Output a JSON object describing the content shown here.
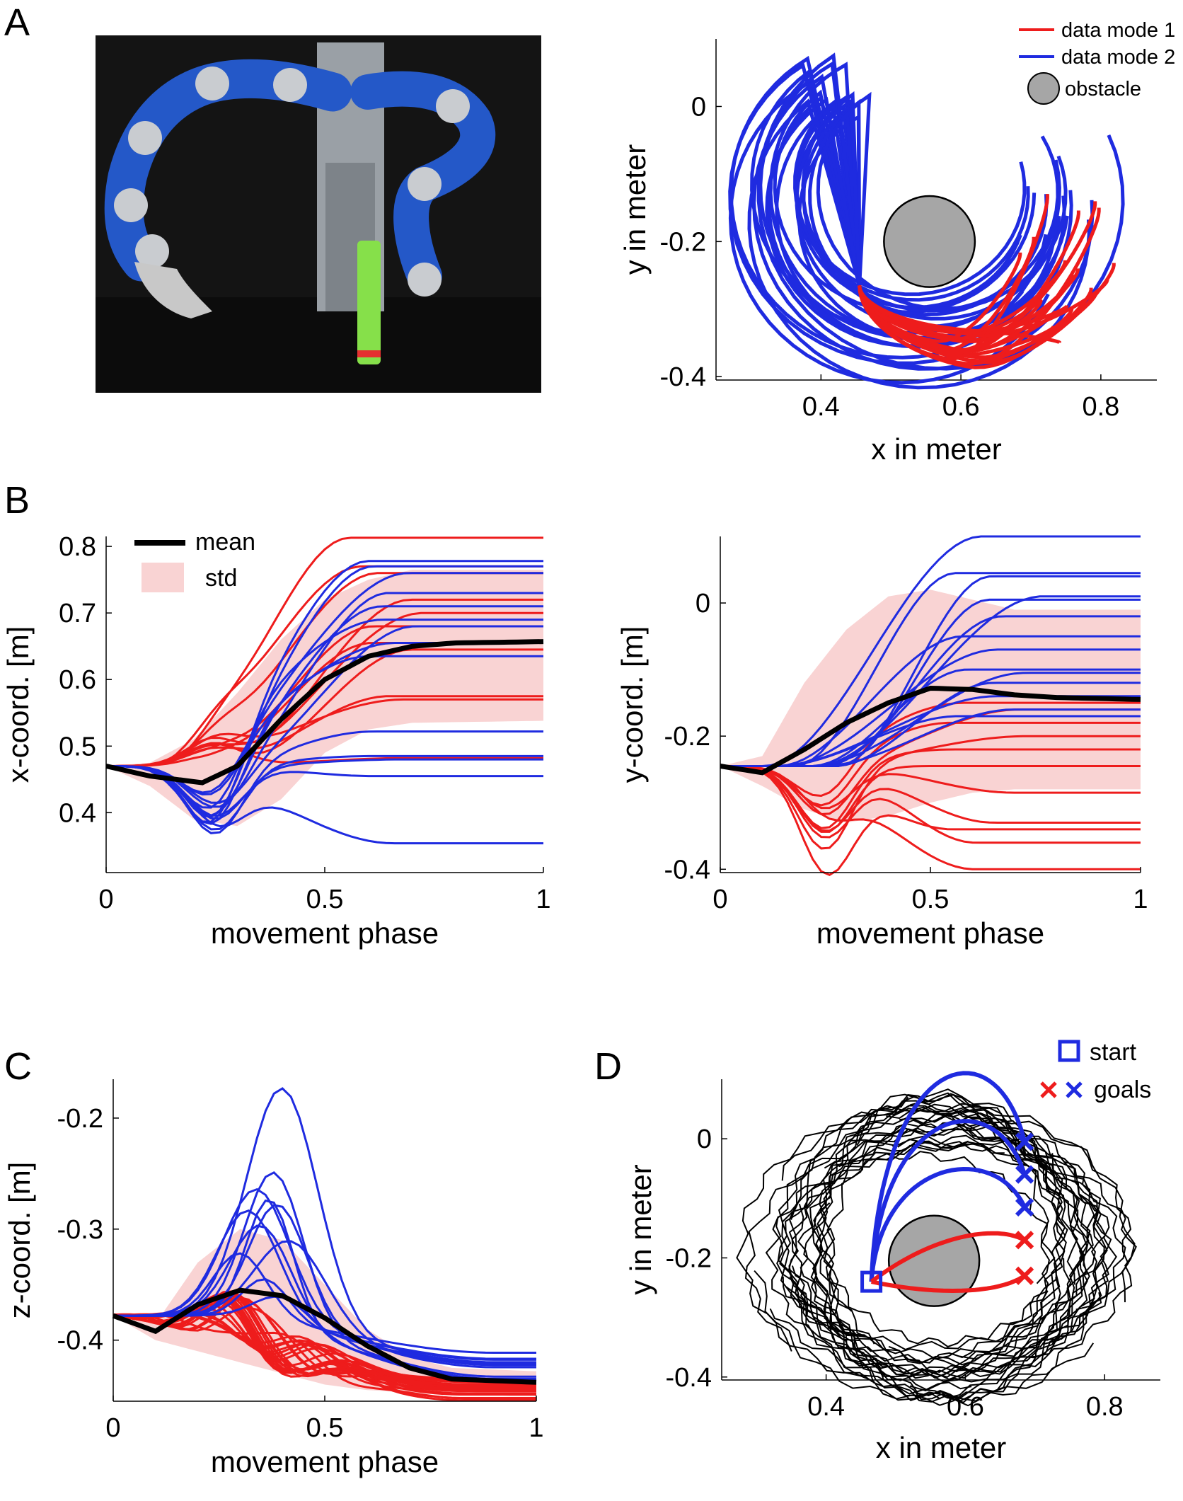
{
  "panel_labels": [
    "A",
    "B",
    "C",
    "D"
  ],
  "photo": {
    "description_icon": "robot-arm-photo",
    "colors": {
      "background": "#141414",
      "arm": "#2458c8",
      "pillar": "#9aa0a6",
      "tube": "#86e04a"
    }
  },
  "colors": {
    "mode1": "#ee1c1c",
    "mode2": "#1f2be0",
    "mean": "#000000",
    "std": "#f9d3d3",
    "obstacle": "#a6a6a6",
    "other": "#000000"
  },
  "chart_data": [
    {
      "id": "A_xy",
      "type": "line",
      "xlabel": "x in meter",
      "ylabel": "y in meter",
      "xlim": [
        0.25,
        0.88
      ],
      "ylim": [
        -0.405,
        0.1
      ],
      "xticks": [
        0.4,
        0.6,
        0.8
      ],
      "xtick_labels": [
        "0.4",
        "0.6",
        "0.8"
      ],
      "yticks": [
        0,
        -0.2,
        -0.4
      ],
      "ytick_labels": [
        "0",
        "-0.2",
        "-0.4"
      ],
      "legend": {
        "position": "top-right",
        "entries": [
          "data mode 1",
          "data mode 2",
          "obstacle"
        ]
      },
      "obstacle": {
        "cx": 0.555,
        "cy": -0.2,
        "r": 0.065
      },
      "mode1_example": {
        "x": [
          0.45,
          0.47,
          0.55,
          0.63,
          0.7,
          0.73,
          0.72,
          0.7
        ],
        "y": [
          -0.27,
          -0.32,
          -0.34,
          -0.33,
          -0.28,
          -0.2,
          -0.15,
          -0.13
        ]
      },
      "mode2_example": {
        "x": [
          0.45,
          0.4,
          0.36,
          0.38,
          0.48,
          0.6,
          0.68,
          0.72,
          0.75
        ],
        "y": [
          -0.27,
          -0.2,
          -0.08,
          0.0,
          0.04,
          0.03,
          -0.02,
          -0.08,
          -0.15
        ]
      }
    },
    {
      "id": "B_x",
      "type": "line",
      "xlabel": "movement phase",
      "ylabel": "x-coord. [m]",
      "xlim": [
        0,
        1
      ],
      "ylim": [
        0.31,
        0.815
      ],
      "xticks": [
        0,
        0.5,
        1
      ],
      "xtick_labels": [
        "0",
        "0.5",
        "1"
      ],
      "yticks": [
        0.4,
        0.5,
        0.6,
        0.7,
        0.8
      ],
      "ytick_labels": [
        "0.4",
        "0.5",
        "0.6",
        "0.7",
        "0.8"
      ],
      "legend": {
        "position": "top-left",
        "entries": [
          "mean",
          "std"
        ]
      },
      "start": 0.47,
      "mean": {
        "x": [
          0,
          0.1,
          0.22,
          0.3,
          0.4,
          0.5,
          0.6,
          0.7,
          0.8,
          1
        ],
        "y": [
          0.47,
          0.455,
          0.445,
          0.47,
          0.54,
          0.6,
          0.635,
          0.65,
          0.655,
          0.657
        ]
      },
      "std_upper": {
        "x": [
          0,
          0.1,
          0.2,
          0.3,
          0.4,
          0.5,
          0.6,
          0.7,
          1
        ],
        "y": [
          0.47,
          0.475,
          0.51,
          0.58,
          0.66,
          0.72,
          0.75,
          0.765,
          0.765
        ]
      },
      "std_lower": {
        "x": [
          0,
          0.1,
          0.2,
          0.3,
          0.4,
          0.5,
          0.6,
          0.7,
          1
        ],
        "y": [
          0.47,
          0.44,
          0.39,
          0.38,
          0.42,
          0.49,
          0.525,
          0.535,
          0.538
        ]
      },
      "mode1_finals": [
        0.813,
        0.77,
        0.76,
        0.72,
        0.7,
        0.68,
        0.655,
        0.645,
        0.575,
        0.57,
        0.482
      ],
      "mode2_finals": [
        0.778,
        0.77,
        0.76,
        0.73,
        0.71,
        0.69,
        0.68,
        0.655,
        0.635,
        0.522,
        0.485,
        0.48,
        0.455,
        0.354
      ]
    },
    {
      "id": "B_y",
      "type": "line",
      "xlabel": "movement phase",
      "ylabel": "y-coord. [m]",
      "xlim": [
        0,
        1
      ],
      "ylim": [
        -0.405,
        0.1
      ],
      "xticks": [
        0,
        0.5,
        1
      ],
      "xtick_labels": [
        "0",
        "0.5",
        "1"
      ],
      "yticks": [
        0,
        -0.2,
        -0.4
      ],
      "ytick_labels": [
        "0",
        "-0.2",
        "-0.4"
      ],
      "start": -0.245,
      "mean": {
        "x": [
          0,
          0.1,
          0.2,
          0.3,
          0.4,
          0.5,
          0.6,
          0.7,
          0.8,
          1
        ],
        "y": [
          -0.245,
          -0.255,
          -0.22,
          -0.18,
          -0.15,
          -0.128,
          -0.13,
          -0.138,
          -0.142,
          -0.145
        ]
      },
      "std_upper": {
        "x": [
          0,
          0.1,
          0.2,
          0.3,
          0.4,
          0.5,
          0.6,
          0.7,
          1
        ],
        "y": [
          -0.245,
          -0.23,
          -0.12,
          -0.04,
          0.01,
          0.02,
          0.005,
          -0.01,
          -0.01
        ]
      },
      "std_lower": {
        "x": [
          0,
          0.1,
          0.2,
          0.3,
          0.4,
          0.5,
          0.6,
          0.7,
          1
        ],
        "y": [
          -0.245,
          -0.275,
          -0.31,
          -0.33,
          -0.32,
          -0.3,
          -0.285,
          -0.28,
          -0.28
        ]
      },
      "mode1_finals": [
        -0.15,
        -0.16,
        -0.18,
        -0.2,
        -0.22,
        -0.245,
        -0.285,
        -0.33,
        -0.34,
        -0.36,
        -0.4
      ],
      "mode2_finals": [
        0.1,
        0.045,
        0.04,
        0.01,
        0.005,
        -0.02,
        -0.05,
        -0.07,
        -0.1,
        -0.105,
        -0.12,
        -0.14,
        -0.16,
        -0.17
      ]
    },
    {
      "id": "C_z",
      "type": "line",
      "xlabel": "movement phase",
      "ylabel": "z-coord. [m]",
      "xlim": [
        0,
        1
      ],
      "ylim": [
        -0.455,
        -0.165
      ],
      "xticks": [
        0,
        0.5,
        1
      ],
      "xtick_labels": [
        "0",
        "0.5",
        "1"
      ],
      "yticks": [
        -0.2,
        -0.3,
        -0.4
      ],
      "ytick_labels": [
        "-0.2",
        "-0.3",
        "-0.4"
      ],
      "start": -0.378,
      "mean": {
        "x": [
          0,
          0.1,
          0.2,
          0.3,
          0.4,
          0.5,
          0.6,
          0.7,
          0.8,
          1
        ],
        "y": [
          -0.378,
          -0.392,
          -0.368,
          -0.355,
          -0.36,
          -0.38,
          -0.405,
          -0.425,
          -0.435,
          -0.438
        ]
      },
      "std_upper": {
        "x": [
          0,
          0.1,
          0.2,
          0.3,
          0.4,
          0.5,
          0.6,
          0.7,
          0.8,
          1
        ],
        "y": [
          -0.378,
          -0.385,
          -0.33,
          -0.3,
          -0.31,
          -0.35,
          -0.39,
          -0.415,
          -0.425,
          -0.428
        ]
      },
      "std_lower": {
        "x": [
          0,
          0.1,
          0.2,
          0.3,
          0.4,
          0.5,
          0.6,
          0.7,
          0.8,
          1
        ],
        "y": [
          -0.378,
          -0.4,
          -0.41,
          -0.42,
          -0.43,
          -0.44,
          -0.445,
          -0.447,
          -0.448,
          -0.448
        ]
      },
      "mode2_peaks": [
        -0.165,
        -0.24,
        -0.26,
        -0.265,
        -0.27,
        -0.28,
        -0.29,
        -0.3,
        -0.32,
        -0.34,
        -0.35
      ],
      "mode2_peak_x": [
        0.4,
        0.38,
        0.34,
        0.37,
        0.39,
        0.32,
        0.35,
        0.42,
        0.3,
        0.36,
        0.4
      ]
    },
    {
      "id": "D_xy",
      "type": "line",
      "xlabel": "x in meter",
      "ylabel": "y in meter",
      "xlim": [
        0.25,
        0.88
      ],
      "ylim": [
        -0.405,
        0.1
      ],
      "xticks": [
        0.4,
        0.6,
        0.8
      ],
      "xtick_labels": [
        "0.4",
        "0.6",
        "0.8"
      ],
      "yticks": [
        0,
        -0.2,
        -0.4
      ],
      "ytick_labels": [
        "0",
        "-0.2",
        "-0.4"
      ],
      "legend": {
        "position": "top-right",
        "entries": [
          "start",
          "goals"
        ]
      },
      "obstacle": {
        "cx": 0.555,
        "cy": -0.205,
        "r": 0.065
      },
      "start": [
        0.465,
        -0.24
      ],
      "goals": [
        {
          "x": 0.685,
          "y": -0.005,
          "mode": 2
        },
        {
          "x": 0.685,
          "y": -0.06,
          "mode": 2
        },
        {
          "x": 0.685,
          "y": -0.115,
          "mode": 2
        },
        {
          "x": 0.685,
          "y": -0.17,
          "mode": 1
        },
        {
          "x": 0.685,
          "y": -0.23,
          "mode": 1
        }
      ]
    }
  ]
}
